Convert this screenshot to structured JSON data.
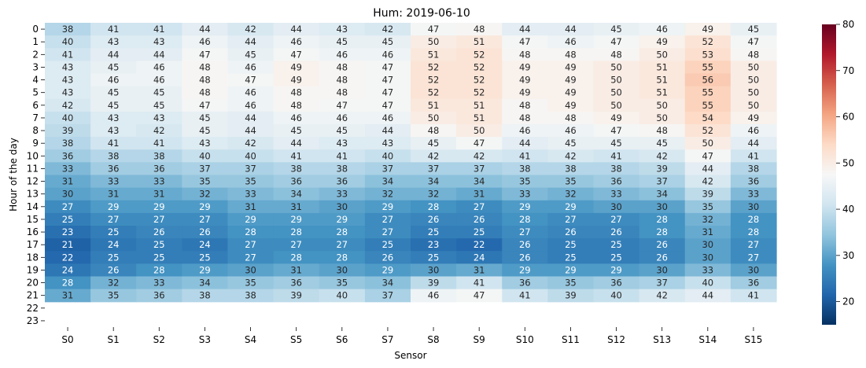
{
  "chart_data": {
    "type": "heatmap",
    "title": "Hum: 2019-06-10",
    "xlabel": "Sensor",
    "ylabel": "Hour of the day",
    "x_categories": [
      "S0",
      "S1",
      "S2",
      "S3",
      "S4",
      "S5",
      "S6",
      "S7",
      "S8",
      "S9",
      "S10",
      "S11",
      "S12",
      "S13",
      "S14",
      "S15"
    ],
    "y_categories": [
      "0",
      "1",
      "2",
      "3",
      "4",
      "5",
      "6",
      "7",
      "8",
      "9",
      "10",
      "11",
      "12",
      "13",
      "14",
      "15",
      "16",
      "17",
      "18",
      "19",
      "20",
      "21",
      "22",
      "23"
    ],
    "values": [
      [
        38,
        41,
        41,
        44,
        42,
        44,
        43,
        42,
        47,
        48,
        44,
        44,
        45,
        46,
        49,
        45
      ],
      [
        40,
        43,
        43,
        46,
        44,
        46,
        45,
        45,
        50,
        51,
        47,
        46,
        47,
        49,
        52,
        47
      ],
      [
        41,
        44,
        44,
        47,
        45,
        47,
        46,
        46,
        51,
        52,
        48,
        48,
        48,
        50,
        53,
        48
      ],
      [
        43,
        45,
        46,
        48,
        46,
        49,
        48,
        47,
        52,
        52,
        49,
        49,
        50,
        51,
        55,
        50
      ],
      [
        43,
        46,
        46,
        48,
        47,
        49,
        48,
        47,
        52,
        52,
        49,
        49,
        50,
        51,
        56,
        50
      ],
      [
        43,
        45,
        45,
        48,
        46,
        48,
        48,
        47,
        52,
        52,
        49,
        49,
        50,
        51,
        55,
        50
      ],
      [
        42,
        45,
        45,
        47,
        46,
        48,
        47,
        47,
        51,
        51,
        48,
        49,
        50,
        50,
        55,
        50
      ],
      [
        40,
        43,
        43,
        45,
        44,
        46,
        46,
        46,
        50,
        51,
        48,
        48,
        49,
        50,
        54,
        49
      ],
      [
        39,
        43,
        42,
        45,
        44,
        45,
        45,
        44,
        48,
        50,
        46,
        46,
        47,
        48,
        52,
        46
      ],
      [
        38,
        41,
        41,
        43,
        42,
        44,
        43,
        43,
        45,
        47,
        44,
        45,
        45,
        45,
        50,
        44
      ],
      [
        36,
        38,
        38,
        40,
        40,
        41,
        41,
        40,
        42,
        42,
        41,
        42,
        41,
        42,
        47,
        41
      ],
      [
        33,
        36,
        36,
        37,
        37,
        38,
        38,
        37,
        37,
        37,
        38,
        38,
        38,
        39,
        44,
        38
      ],
      [
        31,
        33,
        33,
        35,
        35,
        36,
        36,
        34,
        34,
        34,
        35,
        35,
        36,
        37,
        42,
        36
      ],
      [
        30,
        31,
        31,
        32,
        33,
        34,
        33,
        32,
        32,
        31,
        33,
        32,
        33,
        34,
        39,
        33
      ],
      [
        27,
        29,
        29,
        29,
        31,
        31,
        30,
        29,
        28,
        27,
        29,
        29,
        30,
        30,
        35,
        30
      ],
      [
        25,
        27,
        27,
        27,
        29,
        29,
        29,
        27,
        26,
        26,
        28,
        27,
        27,
        28,
        32,
        28
      ],
      [
        23,
        25,
        26,
        26,
        28,
        28,
        28,
        27,
        25,
        25,
        27,
        26,
        26,
        28,
        31,
        28
      ],
      [
        21,
        24,
        25,
        24,
        27,
        27,
        27,
        25,
        23,
        22,
        26,
        25,
        25,
        26,
        30,
        27
      ],
      [
        22,
        25,
        25,
        25,
        27,
        28,
        28,
        26,
        25,
        24,
        26,
        25,
        25,
        26,
        30,
        27
      ],
      [
        24,
        26,
        28,
        29,
        30,
        31,
        30,
        29,
        30,
        31,
        29,
        29,
        29,
        30,
        33,
        30
      ],
      [
        28,
        32,
        33,
        34,
        35,
        36,
        35,
        34,
        39,
        41,
        36,
        35,
        36,
        37,
        40,
        36
      ],
      [
        31,
        35,
        36,
        38,
        38,
        39,
        40,
        37,
        46,
        47,
        41,
        39,
        40,
        42,
        44,
        41
      ],
      [
        null,
        null,
        null,
        null,
        null,
        null,
        null,
        null,
        null,
        null,
        null,
        null,
        null,
        null,
        null,
        null
      ],
      [
        null,
        null,
        null,
        null,
        null,
        null,
        null,
        null,
        null,
        null,
        null,
        null,
        null,
        null,
        null,
        null
      ]
    ],
    "colorbar": {
      "colormap": "RdBu_r",
      "vmin": 15,
      "vmax": 80,
      "ticks": [
        20,
        30,
        40,
        50,
        60,
        70,
        80
      ]
    },
    "grid": false,
    "legend": "colorbar-right"
  }
}
